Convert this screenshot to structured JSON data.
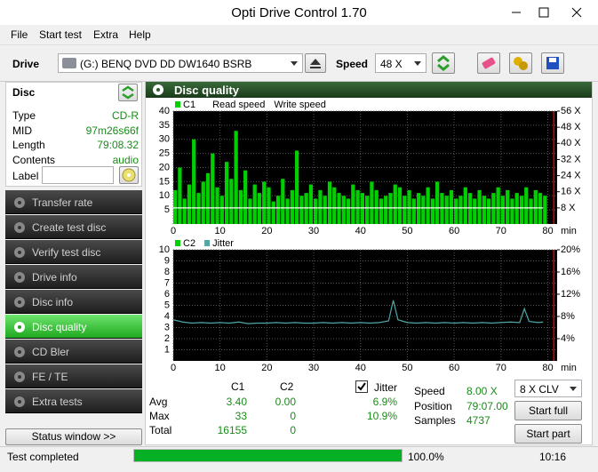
{
  "window": {
    "title": "Opti Drive Control 1.70"
  },
  "menu": [
    "File",
    "Start test",
    "Extra",
    "Help"
  ],
  "toolbar": {
    "drive_label": "Drive",
    "drive": "(G:)  BENQ DVD DD DW1640 BSRB",
    "speed_label": "Speed",
    "speed": "48 X"
  },
  "disc": {
    "title": "Disc",
    "fields": [
      [
        "Type",
        "CD-R"
      ],
      [
        "MID",
        "97m26s66f"
      ],
      [
        "Length",
        "79:08.32"
      ],
      [
        "Contents",
        "audio"
      ]
    ],
    "label": "Label"
  },
  "sidebar": {
    "items": [
      "Transfer rate",
      "Create test disc",
      "Verify test disc",
      "Drive info",
      "Disc info",
      "Disc quality",
      "CD Bler",
      "FE / TE",
      "Extra tests"
    ],
    "active": 5
  },
  "status_window": "Status window >>",
  "panel": {
    "title": "Disc quality"
  },
  "charts": [
    {
      "xlim": [
        0,
        82
      ],
      "ylim": [
        0,
        40
      ],
      "y2lim": [
        0,
        56
      ],
      "xlabel": "min",
      "xticks": [
        0,
        10,
        20,
        30,
        40,
        50,
        60,
        70,
        80
      ],
      "yticks": [
        5,
        10,
        15,
        20,
        25,
        30,
        35,
        40
      ],
      "y2ticks": [
        {
          "value": 8,
          "label": "8 X"
        },
        {
          "value": 16,
          "label": "16 X"
        },
        {
          "value": 24,
          "label": "24 X"
        },
        {
          "value": 32,
          "label": "32 X"
        },
        {
          "value": 40,
          "label": "40 X"
        },
        {
          "value": 48,
          "label": "48 X"
        },
        {
          "value": 56,
          "label": "56 X"
        }
      ],
      "marker_x": 81.3,
      "series": [
        {
          "name": "C1",
          "kind": "bar",
          "color": "#00d000",
          "x": [
            0,
            1,
            2,
            3,
            4,
            5,
            6,
            7,
            8,
            9,
            10,
            11,
            12,
            13,
            14,
            15,
            16,
            17,
            18,
            19,
            20,
            21,
            22,
            23,
            24,
            25,
            26,
            27,
            28,
            29,
            30,
            31,
            32,
            33,
            34,
            35,
            36,
            37,
            38,
            39,
            40,
            41,
            42,
            43,
            44,
            45,
            46,
            47,
            48,
            49,
            50,
            51,
            52,
            53,
            54,
            55,
            56,
            57,
            58,
            59,
            60,
            61,
            62,
            63,
            64,
            65,
            66,
            67,
            68,
            69,
            70,
            71,
            72,
            73,
            74,
            75,
            76,
            77,
            78,
            79
          ],
          "values": [
            12,
            20,
            9,
            14,
            30,
            11,
            15,
            18,
            25,
            13,
            10,
            22,
            16,
            33,
            12,
            19,
            9,
            14,
            11,
            15,
            13,
            8,
            10,
            16,
            9,
            12,
            26,
            10,
            11,
            14,
            9,
            12,
            10,
            15,
            13,
            11,
            10,
            9,
            14,
            12,
            11,
            10,
            15,
            12,
            9,
            10,
            11,
            14,
            13,
            10,
            12,
            9,
            11,
            10,
            13,
            9,
            15,
            11,
            10,
            12,
            9,
            10,
            13,
            11,
            9,
            12,
            10,
            9,
            11,
            13,
            10,
            12,
            9,
            11,
            10,
            13,
            9,
            12,
            11,
            10
          ]
        },
        {
          "name": "Read speed",
          "kind": "line",
          "axis": "y2",
          "color": "#ffffff",
          "x": [
            0,
            79
          ],
          "values": [
            8,
            8
          ]
        },
        {
          "name": "Write speed"
        }
      ]
    },
    {
      "xlim": [
        0,
        82
      ],
      "ylim": [
        0,
        10
      ],
      "y2lim": [
        0,
        20
      ],
      "xlabel": "min",
      "xticks": [
        0,
        10,
        20,
        30,
        40,
        50,
        60,
        70,
        80
      ],
      "yticks": [
        1,
        2,
        3,
        4,
        5,
        6,
        7,
        8,
        9,
        10
      ],
      "y2ticks": [
        {
          "value": 4,
          "label": "4%"
        },
        {
          "value": 8,
          "label": "8%"
        },
        {
          "value": 12,
          "label": "12%"
        },
        {
          "value": 16,
          "label": "16%"
        },
        {
          "value": 20,
          "label": "20%"
        }
      ],
      "marker_x": 81.3,
      "series": [
        {
          "name": "C2",
          "color": "#00d000"
        },
        {
          "name": "Jitter",
          "kind": "line",
          "axis": "y2",
          "color": "#4fa8a8",
          "x": [
            0,
            2,
            4,
            6,
            8,
            10,
            12,
            14,
            16,
            18,
            20,
            22,
            24,
            26,
            28,
            30,
            32,
            34,
            36,
            38,
            40,
            42,
            44,
            46,
            47,
            48,
            50,
            52,
            54,
            56,
            58,
            60,
            62,
            64,
            66,
            68,
            70,
            72,
            74,
            75,
            76,
            78,
            79
          ],
          "values": [
            7.4,
            7.0,
            6.8,
            6.9,
            6.8,
            6.9,
            6.8,
            7.0,
            6.7,
            6.8,
            6.8,
            6.9,
            6.8,
            6.9,
            6.8,
            6.8,
            6.9,
            6.8,
            6.9,
            6.8,
            6.9,
            6.8,
            6.9,
            7.2,
            10.9,
            7.4,
            6.9,
            6.8,
            6.9,
            6.8,
            6.9,
            6.8,
            6.9,
            6.8,
            6.9,
            6.8,
            6.9,
            7.0,
            6.9,
            9.4,
            7.1,
            6.9,
            7.0
          ]
        }
      ]
    }
  ],
  "stats": {
    "headers": [
      "C1",
      "C2"
    ],
    "rows": [
      [
        "Avg",
        "3.40",
        "0.00"
      ],
      [
        "Max",
        "33",
        "0"
      ],
      [
        "Total",
        "16155",
        "0"
      ]
    ],
    "jitter_label": "Jitter",
    "jitter_checked": true,
    "jitter": [
      "6.9%",
      "10.9%"
    ]
  },
  "info": [
    [
      "Speed",
      "8.00 X"
    ],
    [
      "Position",
      "79:07.00"
    ],
    [
      "Samples",
      "4737"
    ]
  ],
  "mode": "8 X CLV",
  "buttons": [
    "Start full",
    "Start part"
  ],
  "status": {
    "text": "Test completed",
    "progress": 100,
    "progress_label": "100.0%",
    "time": "10:16"
  }
}
